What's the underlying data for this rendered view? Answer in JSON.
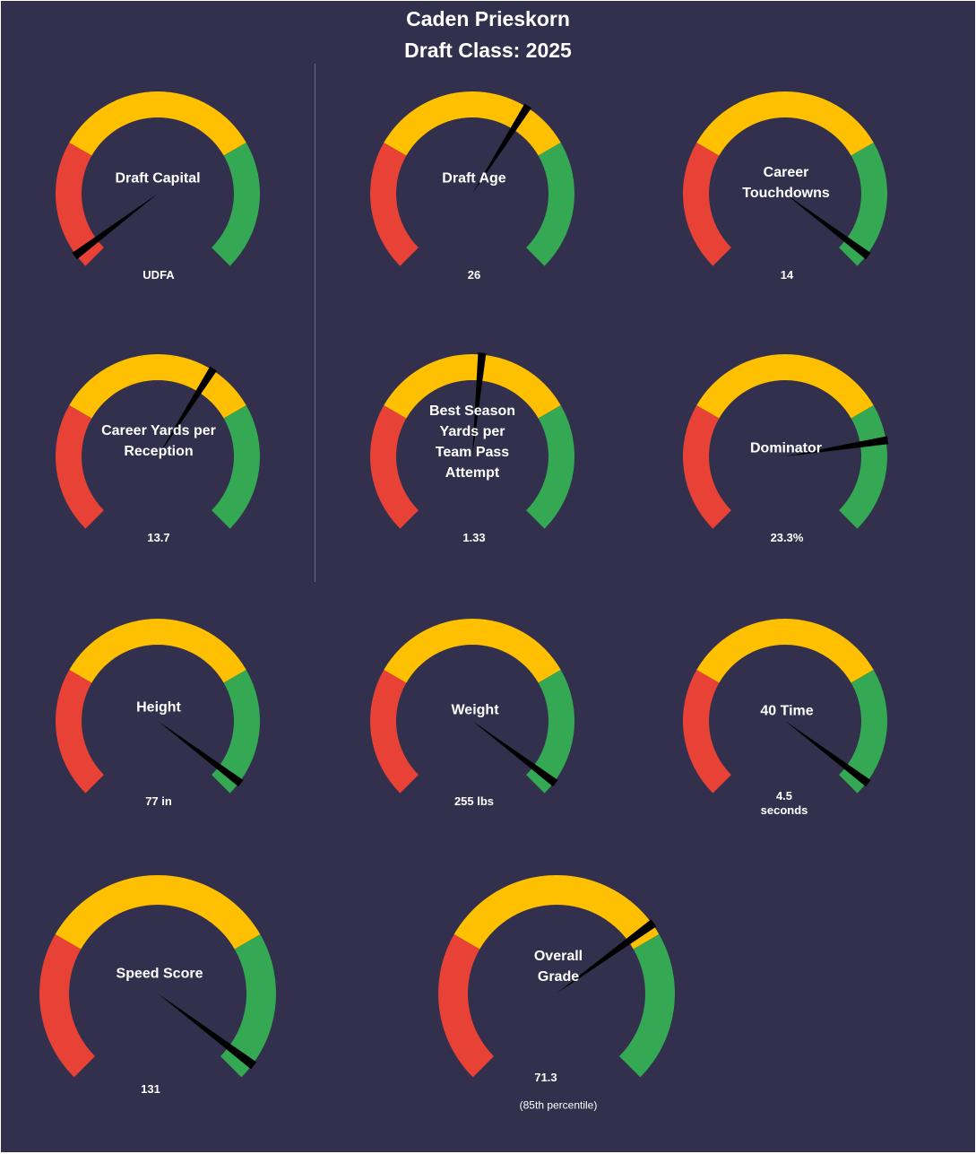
{
  "header": {
    "player_name": "Caden Prieskorn",
    "draft_class": "Draft Class: 2025"
  },
  "colors": {
    "background": "#32304d",
    "red": "#e84236",
    "yellow": "#fec000",
    "green": "#35a853",
    "needle": "#000000",
    "text": "#ffffff"
  },
  "chart_data": [
    {
      "type": "gauge",
      "title": "Draft Capital",
      "value_label": "UDFA",
      "needle_fraction": 0.03,
      "bands": [
        "red",
        "yellow",
        "green"
      ]
    },
    {
      "type": "gauge",
      "title": "Draft Age",
      "value_label": "26",
      "needle_fraction": 0.62
    },
    {
      "type": "gauge",
      "title": "Career Touchdowns",
      "value_label": "14",
      "needle_fraction": 0.97
    },
    {
      "type": "gauge",
      "title": "Career Yards per Reception",
      "value_label": "13.7",
      "needle_fraction": 0.62
    },
    {
      "type": "gauge",
      "title": "Best Season Yards per Team Pass Attempt",
      "value_label": "1.33",
      "needle_fraction": 0.52
    },
    {
      "type": "gauge",
      "title": "Dominator",
      "value_label": "23.3%",
      "needle_fraction": 0.8
    },
    {
      "type": "gauge",
      "title": "Height",
      "value_label": "77 in",
      "needle_fraction": 0.97
    },
    {
      "type": "gauge",
      "title": "Weight",
      "value_label": "255 lbs",
      "needle_fraction": 0.97
    },
    {
      "type": "gauge",
      "title": "40 Time",
      "value_label": "4.5\nseconds",
      "needle_fraction": 0.97
    },
    {
      "type": "gauge",
      "title": "Speed Score",
      "value_label": "131",
      "needle_fraction": 0.97
    },
    {
      "type": "gauge",
      "title": "Overall Grade",
      "value_label": "71.3",
      "note": "(85th  percentile)",
      "needle_fraction": 0.7
    }
  ]
}
